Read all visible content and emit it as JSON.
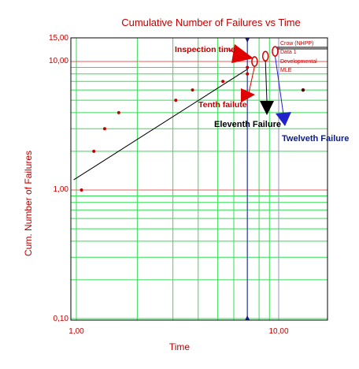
{
  "chart_data": {
    "type": "scatter",
    "title": "Cumulative Number of Failures vs Time",
    "xlabel": "Time",
    "ylabel": "Cum. Number of Failures",
    "x_scale": "log",
    "y_scale": "log",
    "xlim": [
      1.0,
      18.0
    ],
    "ylim": [
      0.1,
      15.0
    ],
    "x_tick_labels": [
      "1,00",
      "10,00"
    ],
    "y_tick_labels": [
      "0,10",
      "1,00",
      "10,00",
      "15,00"
    ],
    "grid": true,
    "legend_items": [
      "Crow (NHPP)",
      "Data 1",
      "Developmental",
      "MLE"
    ],
    "series": [
      {
        "name": "Data 1",
        "color": "#c00000",
        "points": [
          {
            "x": 1.06,
            "y": 1.0
          },
          {
            "x": 1.22,
            "y": 2.0
          },
          {
            "x": 1.38,
            "y": 3.0
          },
          {
            "x": 1.62,
            "y": 4.0
          },
          {
            "x": 3.1,
            "y": 5.0
          },
          {
            "x": 3.75,
            "y": 6.0
          },
          {
            "x": 5.3,
            "y": 7.0
          },
          {
            "x": 7.0,
            "y": 8.0
          },
          {
            "x": 7.0,
            "y": 9.0
          }
        ]
      },
      {
        "name": "Crow (NHPP)",
        "color": "#000000",
        "line": [
          {
            "x": 0.97,
            "y": 1.2
          },
          {
            "x": 7.0,
            "y": 8.7
          }
        ]
      }
    ],
    "predicted_failures": [
      {
        "x": 7.6,
        "y": 10.0
      },
      {
        "x": 8.6,
        "y": 11.0
      },
      {
        "x": 9.6,
        "y": 12.0
      }
    ],
    "extra_point": {
      "x": 13.2,
      "y": 6.0
    },
    "reference_lines": {
      "x_markers": [
        7.0,
        10.0
      ],
      "y_markers": [
        1.0,
        10.0
      ]
    },
    "annotations": [
      {
        "text": "Inspection time",
        "x": 5.0,
        "y": 11.4,
        "color": "#c00000"
      },
      {
        "text": "Tenth failute",
        "x": 4.8,
        "y": 3.7,
        "color": "#c00000"
      },
      {
        "text": "Eleventh Failure",
        "x": 5.2,
        "y": 2.6,
        "color": "#000000"
      },
      {
        "text": "Twelveth Failure",
        "x": 10.4,
        "y": 2.05,
        "color": "#0d1c8c"
      }
    ]
  }
}
